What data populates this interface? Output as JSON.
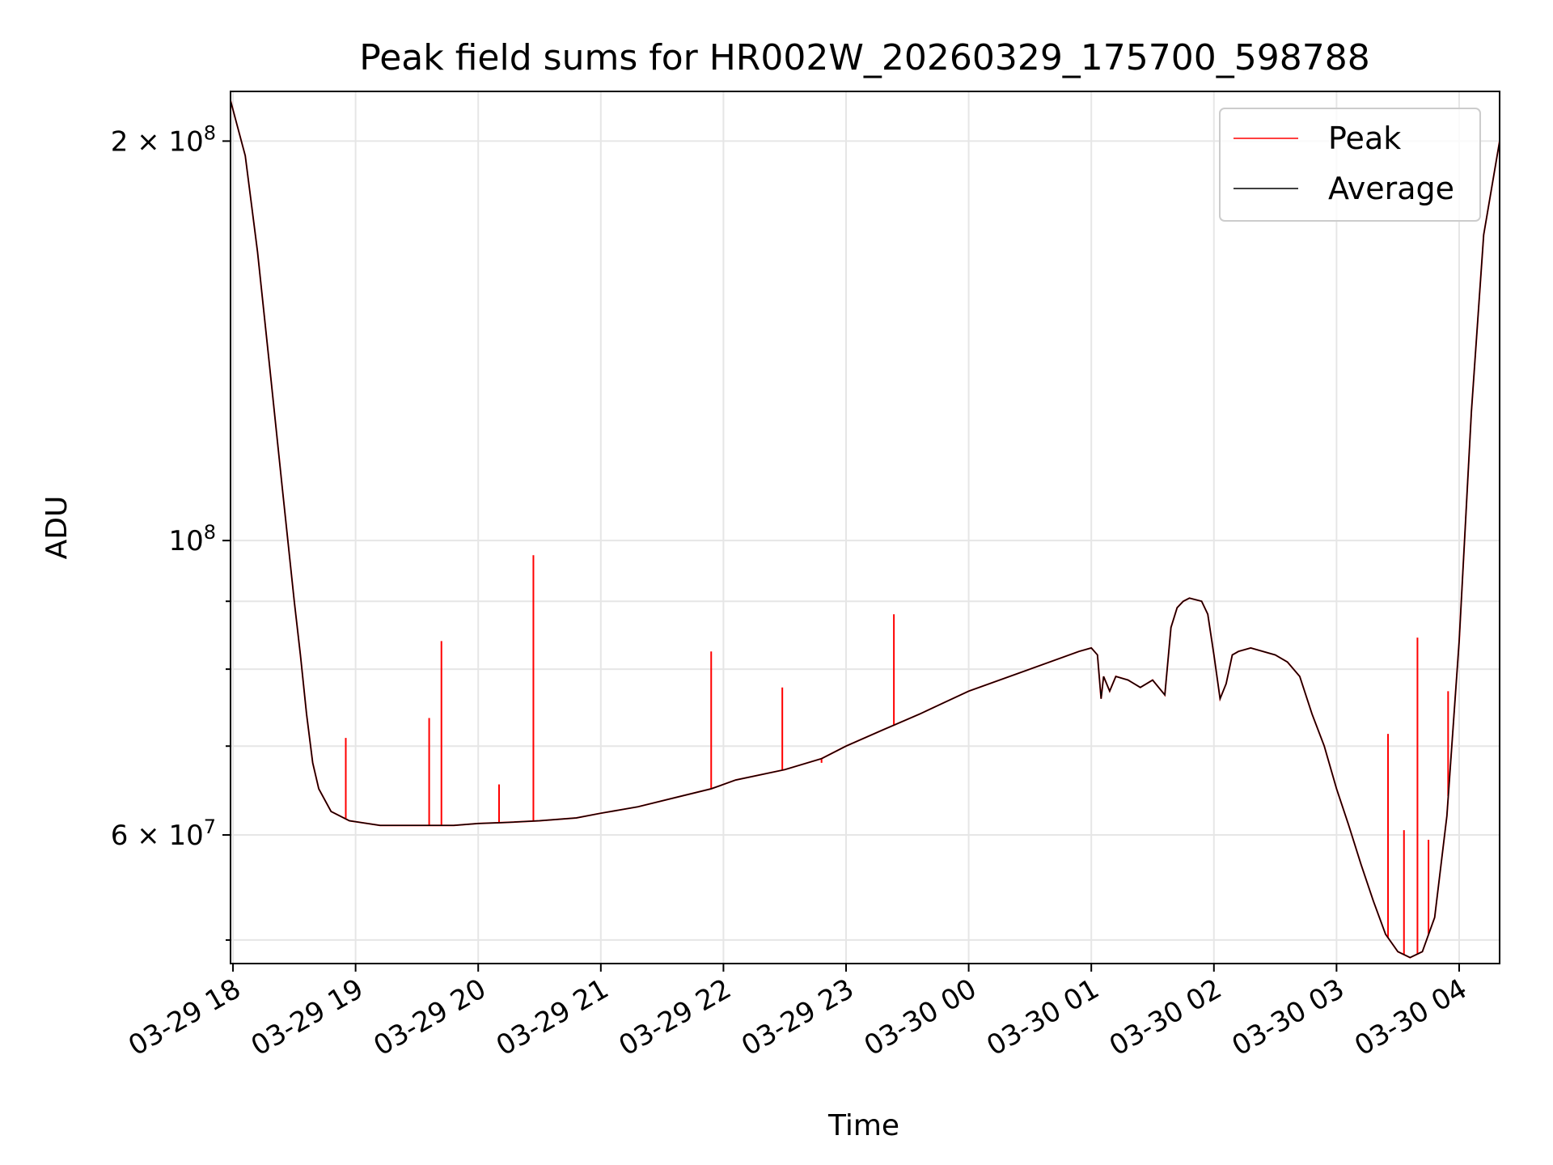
{
  "chart_data": {
    "type": "line",
    "title": "Peak field sums for HR002W_20260329_175700_598788",
    "xlabel": "Time",
    "ylabel": "ADU",
    "yscale": "log",
    "ylim": [
      48000000,
      218000000
    ],
    "xlim_hours": [
      -0.02,
      10.33
    ],
    "x_ticks": [
      {
        "hour": 0,
        "label": "03-29 18"
      },
      {
        "hour": 1,
        "label": "03-29 19"
      },
      {
        "hour": 2,
        "label": "03-29 20"
      },
      {
        "hour": 3,
        "label": "03-29 21"
      },
      {
        "hour": 4,
        "label": "03-29 22"
      },
      {
        "hour": 5,
        "label": "03-29 23"
      },
      {
        "hour": 6,
        "label": "03-30 00"
      },
      {
        "hour": 7,
        "label": "03-30 01"
      },
      {
        "hour": 8,
        "label": "03-30 02"
      },
      {
        "hour": 9,
        "label": "03-30 03"
      },
      {
        "hour": 10,
        "label": "03-30 04"
      }
    ],
    "y_major_ticks": [
      {
        "value": 60000000,
        "base": "6 × 10",
        "exp": "7"
      },
      {
        "value": 100000000,
        "base": "10",
        "exp": "8"
      },
      {
        "value": 200000000,
        "base": "2 × 10",
        "exp": "8"
      }
    ],
    "y_minor_ticks": [
      50000000,
      70000000,
      80000000,
      90000000
    ],
    "legend": {
      "position": "upper right",
      "entries": [
        {
          "label": "Peak",
          "color": "#ff0000"
        },
        {
          "label": "Average",
          "color": "#000000"
        }
      ]
    },
    "series": [
      {
        "name": "Average",
        "color": "#000000",
        "x_hours": [
          -0.04,
          0.1,
          0.2,
          0.3,
          0.4,
          0.5,
          0.55,
          0.6,
          0.65,
          0.7,
          0.8,
          0.95,
          1.2,
          1.5,
          1.8,
          2.0,
          2.2,
          2.5,
          2.8,
          3.0,
          3.3,
          3.6,
          3.9,
          4.0,
          4.1,
          4.5,
          4.8,
          5.0,
          5.3,
          5.6,
          5.8,
          6.0,
          6.5,
          6.9,
          7.0,
          7.05,
          7.08,
          7.1,
          7.15,
          7.2,
          7.3,
          7.4,
          7.5,
          7.6,
          7.65,
          7.7,
          7.75,
          7.8,
          7.9,
          7.95,
          8.0,
          8.05,
          8.1,
          8.15,
          8.2,
          8.3,
          8.5,
          8.6,
          8.7,
          8.8,
          8.9,
          9.0,
          9.1,
          9.2,
          9.3,
          9.4,
          9.5,
          9.6,
          9.7,
          9.8,
          9.9,
          10.0,
          10.1,
          10.2,
          10.33
        ],
        "values": [
          218000000,
          195000000,
          165000000,
          135000000,
          110000000,
          90000000,
          82000000,
          74000000,
          68000000,
          65000000,
          62500000,
          61500000,
          61000000,
          61000000,
          61000000,
          61200000,
          61300000,
          61500000,
          61800000,
          62300000,
          63000000,
          64000000,
          65000000,
          65500000,
          66000000,
          67200000,
          68500000,
          70000000,
          72000000,
          74000000,
          75500000,
          77000000,
          80000000,
          82500000,
          83000000,
          82000000,
          76000000,
          79000000,
          77000000,
          79000000,
          78500000,
          77500000,
          78500000,
          76500000,
          86000000,
          89000000,
          90000000,
          90500000,
          90000000,
          88000000,
          82000000,
          76000000,
          78000000,
          82000000,
          82500000,
          83000000,
          82000000,
          81000000,
          79000000,
          74000000,
          70000000,
          65000000,
          61000000,
          57000000,
          53500000,
          50500000,
          49000000,
          48500000,
          49000000,
          52000000,
          62000000,
          84000000,
          125000000,
          170000000,
          200000000
        ]
      },
      {
        "name": "Peak",
        "color": "#ff0000",
        "spikes": [
          {
            "hour": 0.92,
            "value": 71000000
          },
          {
            "hour": 1.6,
            "value": 73500000
          },
          {
            "hour": 1.7,
            "value": 84000000
          },
          {
            "hour": 2.17,
            "value": 65500000
          },
          {
            "hour": 2.45,
            "value": 97500000
          },
          {
            "hour": 3.9,
            "value": 82500000
          },
          {
            "hour": 4.48,
            "value": 77500000
          },
          {
            "hour": 4.8,
            "value": 68000000
          },
          {
            "hour": 5.39,
            "value": 88000000
          },
          {
            "hour": 9.42,
            "value": 71500000
          },
          {
            "hour": 9.55,
            "value": 60500000
          },
          {
            "hour": 9.66,
            "value": 84500000
          },
          {
            "hour": 9.75,
            "value": 59500000
          },
          {
            "hour": 9.91,
            "value": 77000000
          }
        ]
      }
    ]
  }
}
